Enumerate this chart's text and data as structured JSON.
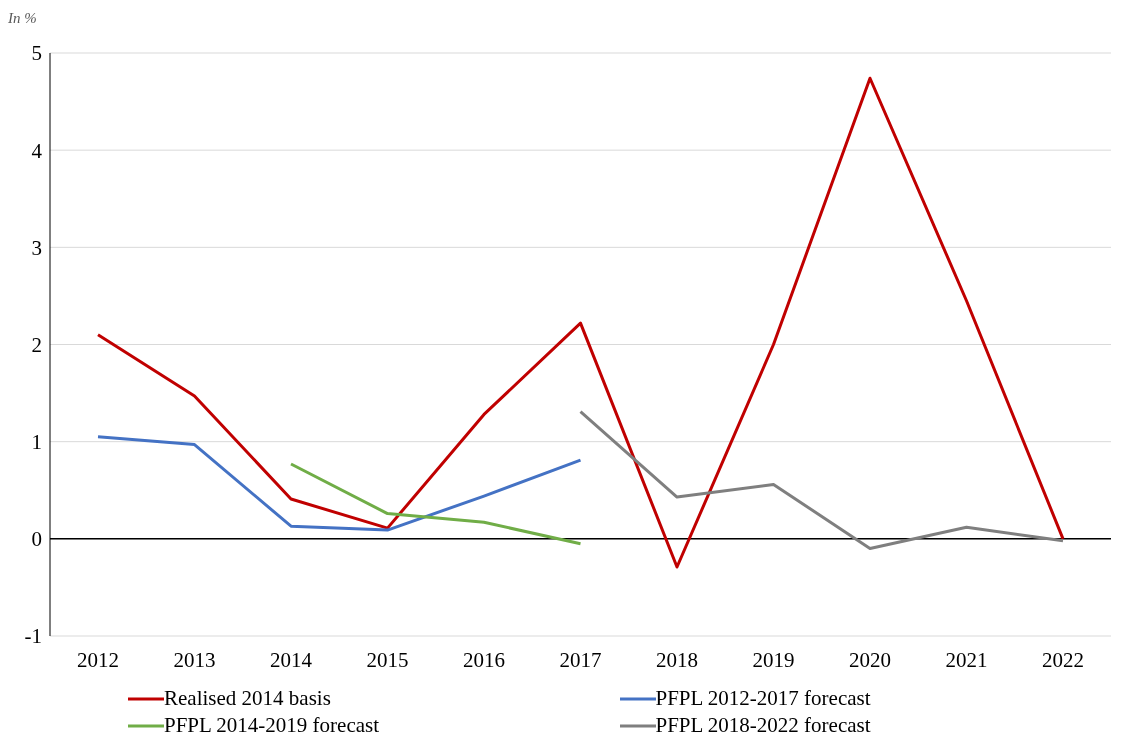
{
  "chart_data": {
    "type": "line",
    "ylabel": "In %",
    "categories": [
      "2012",
      "2013",
      "2014",
      "2015",
      "2016",
      "2017",
      "2018",
      "2019",
      "2020",
      "2021",
      "2022"
    ],
    "series": [
      {
        "name": "Realised 2014 basis",
        "color": "#c00000",
        "values": [
          2.1,
          1.47,
          0.41,
          0.11,
          1.28,
          2.22,
          -0.29,
          2.0,
          4.74,
          2.45,
          0
        ]
      },
      {
        "name": "PFPL 2012-2017 forecast",
        "color": "#4472c4",
        "values": [
          1.05,
          0.97,
          0.13,
          0.09,
          0.44,
          0.81,
          null,
          null,
          null,
          null,
          null
        ]
      },
      {
        "name": "PFPL 2014-2019 forecast",
        "color": "#70ad47",
        "values": [
          null,
          null,
          0.77,
          0.26,
          0.17,
          -0.05,
          null,
          null,
          null,
          null,
          null
        ]
      },
      {
        "name": "PFPL 2018-2022 forecast",
        "color": "#7f7f7f",
        "values": [
          null,
          null,
          null,
          null,
          null,
          1.31,
          0.43,
          0.56,
          -0.1,
          0.12,
          -0.02
        ]
      }
    ],
    "ylim": [
      -1,
      5
    ],
    "yticks": [
      -1,
      0,
      1,
      2,
      3,
      4,
      5
    ],
    "grid": "y",
    "legend": "bottom",
    "marker": "none",
    "line_style": "solid",
    "ref_lines": [
      {
        "axis": "y",
        "value": 0,
        "color": "#000000"
      }
    ]
  }
}
